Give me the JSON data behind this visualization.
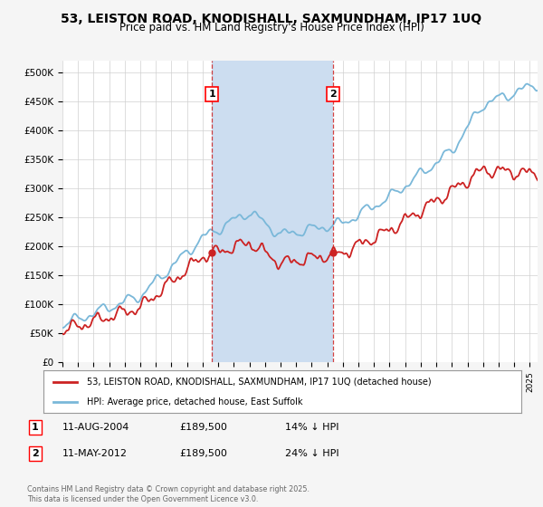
{
  "title": "53, LEISTON ROAD, KNODISHALL, SAXMUNDHAM, IP17 1UQ",
  "subtitle": "Price paid vs. HM Land Registry's House Price Index (HPI)",
  "ylim": [
    0,
    520000
  ],
  "yticks": [
    0,
    50000,
    100000,
    150000,
    200000,
    250000,
    300000,
    350000,
    400000,
    450000,
    500000
  ],
  "ytick_labels": [
    "£0",
    "£50K",
    "£100K",
    "£150K",
    "£200K",
    "£250K",
    "£300K",
    "£350K",
    "£400K",
    "£450K",
    "£500K"
  ],
  "hpi_color": "#7ab8d9",
  "price_color": "#cc2222",
  "vline_color": "#cc2222",
  "sale1_year": 2004.61,
  "sale2_year": 2012.36,
  "sale1_price": 189500,
  "sale2_price": 189500,
  "legend1_label": "53, LEISTON ROAD, KNODISHALL, SAXMUNDHAM, IP17 1UQ (detached house)",
  "legend2_label": "HPI: Average price, detached house, East Suffolk",
  "annotation1": [
    "1",
    "11-AUG-2004",
    "£189,500",
    "14% ↓ HPI"
  ],
  "annotation2": [
    "2",
    "11-MAY-2012",
    "£189,500",
    "24% ↓ HPI"
  ],
  "footer": "Contains HM Land Registry data © Crown copyright and database right 2025.\nThis data is licensed under the Open Government Licence v3.0.",
  "bg_color": "#f5f5f5",
  "plot_bg": "#ffffff",
  "shade_color": "#ccddf0"
}
